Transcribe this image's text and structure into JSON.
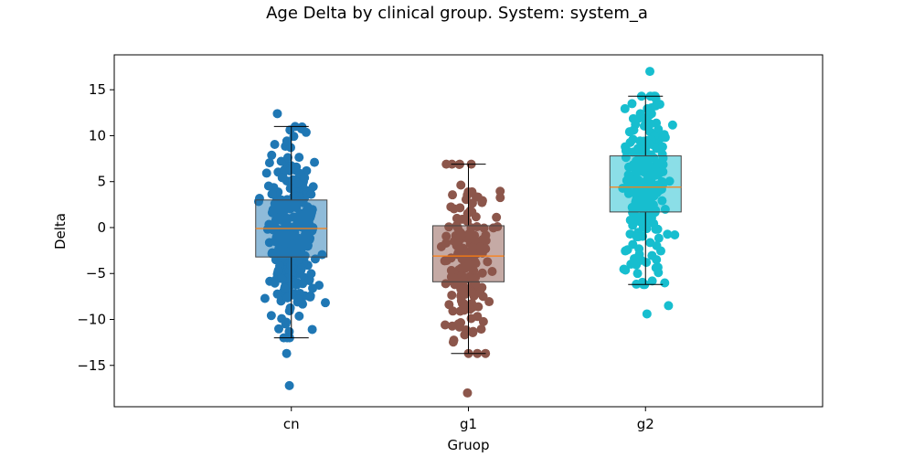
{
  "chart_data": {
    "type": "box",
    "title": "Age Delta by clinical group. System: system_a",
    "xlabel": "Gruop",
    "ylabel": "Delta",
    "ylim": [
      -19.5,
      18.8
    ],
    "yticks": [
      -15,
      -10,
      -5,
      0,
      5,
      10,
      15
    ],
    "grid": false,
    "groups": [
      {
        "category": "cn",
        "color": "#1f77b4",
        "box": {
          "whisker_low": -12.0,
          "q1": -3.2,
          "median": -0.1,
          "q3": 3.0,
          "whisker_high": 11.0
        },
        "outliers": [
          12.4,
          -13.7,
          -17.2
        ],
        "approx_points": 300
      },
      {
        "category": "g1",
        "color": "#8c564b",
        "box": {
          "whisker_low": -13.7,
          "q1": -5.9,
          "median": -3.1,
          "q3": 0.2,
          "whisker_high": 6.9
        },
        "outliers": [
          -18.0
        ],
        "approx_points": 170
      },
      {
        "category": "g2",
        "color": "#17becf",
        "box": {
          "whisker_low": -6.2,
          "q1": 1.7,
          "median": 4.4,
          "q3": 7.8,
          "whisker_high": 14.3
        },
        "outliers": [
          17.0,
          -8.5,
          -9.4
        ],
        "approx_points": 220
      }
    ],
    "median_color": "#ff7f0e"
  }
}
